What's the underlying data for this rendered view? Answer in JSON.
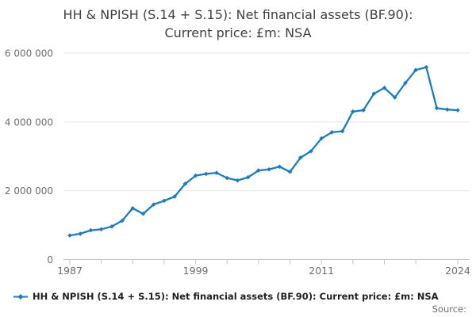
{
  "title": {
    "line1": "HH & NPISH (S.14 + S.15): Net financial assets (BF.90):",
    "line2": "Current price: £m: NSA"
  },
  "legend": {
    "label": "HH & NPISH (S.14 + S.15): Net financial assets (BF.90): Current price: £m: NSA",
    "marker": "line-diamond-icon"
  },
  "source_label": "Source:",
  "colors": {
    "line": "#1d7cbf",
    "grid": "#e6e6e6",
    "axis": "#b8c6d8",
    "tick_label": "#6e6e6e",
    "title_text": "#414042",
    "legend_text": "#1f1f1f",
    "background": "#ffffff"
  },
  "chart_data": {
    "type": "line",
    "title": "HH & NPISH (S.14 + S.15): Net financial assets (BF.90): Current price: £m: NSA",
    "xlabel": "",
    "ylabel": "",
    "ylim": [
      0,
      6000000
    ],
    "grid": "horizontal",
    "legend_position": "bottom-left",
    "marker": "diamond",
    "x": [
      1987,
      1988,
      1989,
      1990,
      1991,
      1992,
      1993,
      1994,
      1995,
      1996,
      1997,
      1998,
      1999,
      2000,
      2001,
      2002,
      2003,
      2004,
      2005,
      2006,
      2007,
      2008,
      2009,
      2010,
      2011,
      2012,
      2013,
      2014,
      2015,
      2016,
      2017,
      2018,
      2019,
      2020,
      2021,
      2022,
      2023,
      2024
    ],
    "series": [
      {
        "name": "HH & NPISH (S.14 + S.15): Net financial assets (BF.90): Current price: £m: NSA",
        "values": [
          700000,
          750000,
          850000,
          880000,
          960000,
          1130000,
          1490000,
          1330000,
          1600000,
          1710000,
          1830000,
          2200000,
          2440000,
          2490000,
          2520000,
          2370000,
          2300000,
          2390000,
          2590000,
          2620000,
          2700000,
          2550000,
          2960000,
          3150000,
          3520000,
          3700000,
          3730000,
          4300000,
          4340000,
          4820000,
          4990000,
          4710000,
          5130000,
          5510000,
          5590000,
          4400000,
          4360000,
          4340000
        ]
      }
    ],
    "y_ticks": [
      {
        "value": 0,
        "label": "0"
      },
      {
        "value": 2000000,
        "label": "2 000 000"
      },
      {
        "value": 4000000,
        "label": "4 000 000"
      },
      {
        "value": 6000000,
        "label": "6 000 000"
      }
    ],
    "x_tick_years": [
      1987,
      1990,
      1993,
      1996,
      1999,
      2002,
      2005,
      2008,
      2011,
      2014,
      2017,
      2020,
      2024
    ],
    "x_label_years": [
      1987,
      1999,
      2011,
      2024
    ]
  }
}
